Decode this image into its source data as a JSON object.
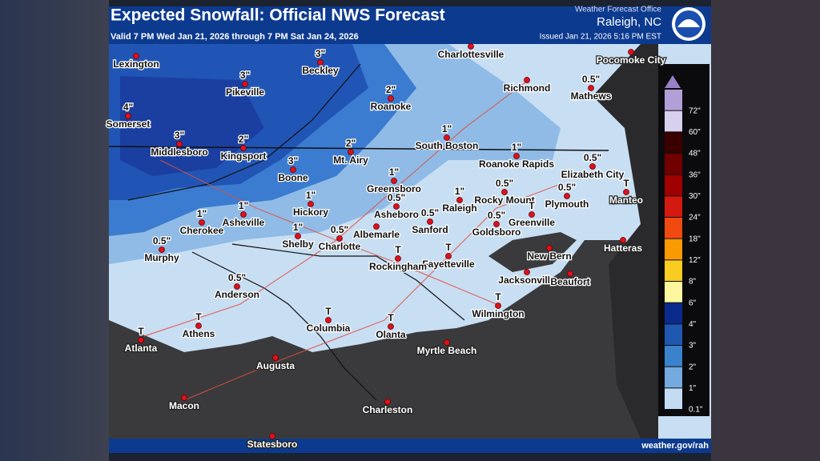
{
  "header": {
    "title": "Expected Snowfall: Official NWS Forecast",
    "valid": "Valid 7 PM Wed Jan 21, 2026 through 7 PM Sat Jan 24, 2026",
    "office_line": "Weather Forecast Office",
    "office": "Raleigh, NC",
    "issued": "Issued Jan 21, 2026 5:16 PM EST"
  },
  "legend": {
    "labels": [
      "72\"",
      "60\"",
      "48\"",
      "36\"",
      "30\"",
      "24\"",
      "18\"",
      "12\"",
      "8\"",
      "6\"",
      "4\"",
      "3\"",
      "2\"",
      "1\"",
      "0.1\""
    ]
  },
  "cities": [
    {
      "name": "Lexington"
    },
    {
      "name": "Somerset",
      "amount": "4\""
    },
    {
      "name": "Pikeville",
      "amount": "3\""
    },
    {
      "name": "Beckley",
      "amount": "3\""
    },
    {
      "name": "Charlottesville"
    },
    {
      "name": "Pocomoke City"
    },
    {
      "name": "Roanoke",
      "amount": "2\""
    },
    {
      "name": "Richmond"
    },
    {
      "name": "Mathews",
      "amount": "0.5\""
    },
    {
      "name": "Middlesboro",
      "amount": "3\""
    },
    {
      "name": "Kingsport",
      "amount": "2\""
    },
    {
      "name": "Mt. Airy",
      "amount": "2\""
    },
    {
      "name": "South Boston",
      "amount": "1\""
    },
    {
      "name": "Roanoke Rapids",
      "amount": "1\""
    },
    {
      "name": "Elizabeth City",
      "amount": "0.5\""
    },
    {
      "name": "Boone",
      "amount": "3\""
    },
    {
      "name": "Greensboro",
      "amount": "1\""
    },
    {
      "name": "Manteo",
      "amount": "T"
    },
    {
      "name": "Hickory",
      "amount": "1\""
    },
    {
      "name": "Asheboro",
      "amount": "0.5\""
    },
    {
      "name": "Raleigh",
      "amount": "1\""
    },
    {
      "name": "Rocky Mount",
      "amount": "0.5\""
    },
    {
      "name": "Plymouth",
      "amount": "0.5\""
    },
    {
      "name": "Greenville",
      "amount": "T"
    },
    {
      "name": "Cherokee",
      "amount": "1\""
    },
    {
      "name": "Asheville",
      "amount": "1\""
    },
    {
      "name": "Albemarle"
    },
    {
      "name": "Sanford",
      "amount": "0.5\""
    },
    {
      "name": "Goldsboro",
      "amount": "0.5\""
    },
    {
      "name": "Murphy",
      "amount": "0.5\""
    },
    {
      "name": "Shelby",
      "amount": "1\""
    },
    {
      "name": "Charlotte",
      "amount": "0.5\""
    },
    {
      "name": "Fayetteville",
      "amount": "T"
    },
    {
      "name": "Rockingham",
      "amount": "T"
    },
    {
      "name": "New Bern"
    },
    {
      "name": "Hatteras"
    },
    {
      "name": "Jacksonville"
    },
    {
      "name": "Beaufort"
    },
    {
      "name": "Anderson",
      "amount": "0.5\""
    },
    {
      "name": "Wilmington",
      "amount": "T"
    },
    {
      "name": "Athens",
      "amount": "T"
    },
    {
      "name": "Columbia",
      "amount": "T"
    },
    {
      "name": "Olanta",
      "amount": "T"
    },
    {
      "name": "Atlanta",
      "amount": "T"
    },
    {
      "name": "Augusta"
    },
    {
      "name": "Myrtle Beach"
    },
    {
      "name": "Macon"
    },
    {
      "name": "Charleston"
    },
    {
      "name": "Statesboro"
    }
  ],
  "footer": {
    "url": "weather.gov/rah"
  }
}
